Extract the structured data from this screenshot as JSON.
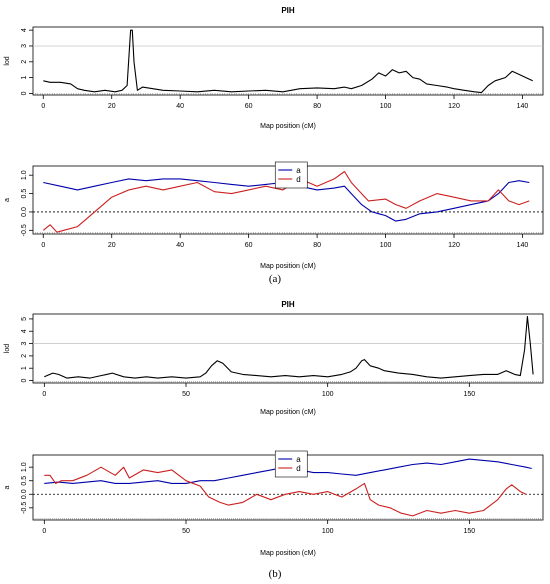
{
  "figure": {
    "captions": [
      "(a)",
      "(b)"
    ]
  },
  "chart_data": [
    {
      "id": "a-lod",
      "type": "line",
      "title": "PIH",
      "xlabel": "Map position (cM)",
      "ylabel": "lod",
      "xlim": [
        -3,
        146
      ],
      "ylim": [
        -0.1,
        4.2
      ],
      "xticks": [
        0,
        20,
        40,
        60,
        80,
        100,
        120,
        140
      ],
      "yticks": [
        0,
        1,
        2,
        3,
        4
      ],
      "threshold": 3,
      "series": [
        {
          "color": "#000000",
          "x": [
            0,
            2,
            5,
            8,
            10,
            12,
            15,
            18,
            21,
            23,
            24.5,
            25.5,
            26,
            26.5,
            27.5,
            29,
            32,
            35,
            40,
            45,
            50,
            55,
            60,
            65,
            70,
            75,
            80,
            85,
            88,
            90,
            93,
            96,
            98,
            100,
            102,
            104,
            106,
            108,
            110,
            112,
            115,
            118,
            120,
            123,
            126,
            128,
            130,
            132,
            135,
            137,
            139,
            141,
            143
          ],
          "y": [
            0.8,
            0.7,
            0.7,
            0.6,
            0.3,
            0.2,
            0.1,
            0.2,
            0.1,
            0.2,
            0.5,
            4.0,
            4.0,
            2.0,
            0.2,
            0.4,
            0.3,
            0.2,
            0.15,
            0.1,
            0.2,
            0.1,
            0.15,
            0.2,
            0.1,
            0.3,
            0.35,
            0.3,
            0.4,
            0.3,
            0.5,
            0.9,
            1.3,
            1.1,
            1.5,
            1.3,
            1.4,
            1.0,
            0.9,
            0.6,
            0.5,
            0.4,
            0.3,
            0.2,
            0.1,
            0.05,
            0.5,
            0.8,
            1.0,
            1.4,
            1.2,
            1.0,
            0.8
          ]
        }
      ]
    },
    {
      "id": "a-eff",
      "type": "line",
      "xlabel": "Map position (cM)",
      "ylabel": "a",
      "xlim": [
        -3,
        146
      ],
      "ylim": [
        -0.6,
        1.25
      ],
      "xticks": [
        0,
        20,
        40,
        60,
        80,
        100,
        120,
        140
      ],
      "yticks": [
        -0.5,
        0.0,
        0.5,
        1.0
      ],
      "ytick_labels": [
        "-0.5",
        "0.0",
        "0.5",
        "1.0"
      ],
      "zero_line": 0,
      "legend_location": "top-center",
      "series": [
        {
          "name": "a",
          "color": "#0000aa",
          "x": [
            0,
            5,
            10,
            15,
            20,
            25,
            30,
            35,
            40,
            45,
            50,
            55,
            60,
            65,
            70,
            75,
            80,
            85,
            88,
            90,
            93,
            96,
            100,
            103,
            106,
            110,
            115,
            120,
            125,
            130,
            133,
            136,
            139,
            142
          ],
          "y": [
            0.8,
            0.7,
            0.6,
            0.7,
            0.8,
            0.9,
            0.85,
            0.9,
            0.9,
            0.85,
            0.8,
            0.75,
            0.7,
            0.75,
            0.8,
            0.7,
            0.6,
            0.65,
            0.7,
            0.5,
            0.2,
            0.0,
            -0.1,
            -0.25,
            -0.2,
            -0.05,
            0.0,
            0.1,
            0.2,
            0.3,
            0.5,
            0.8,
            0.85,
            0.8
          ]
        },
        {
          "name": "d",
          "color": "#cc2020",
          "x": [
            0,
            2,
            4,
            6,
            10,
            15,
            20,
            25,
            30,
            35,
            40,
            45,
            50,
            55,
            60,
            65,
            70,
            75,
            80,
            85,
            88,
            90,
            93,
            95,
            100,
            103,
            106,
            110,
            115,
            120,
            125,
            130,
            133,
            136,
            139,
            142
          ],
          "y": [
            -0.5,
            -0.35,
            -0.55,
            -0.5,
            -0.4,
            0.0,
            0.4,
            0.6,
            0.7,
            0.6,
            0.7,
            0.8,
            0.55,
            0.5,
            0.6,
            0.7,
            0.6,
            0.9,
            0.7,
            0.9,
            1.1,
            0.8,
            0.5,
            0.3,
            0.35,
            0.2,
            0.1,
            0.3,
            0.5,
            0.4,
            0.3,
            0.3,
            0.6,
            0.3,
            0.2,
            0.3
          ]
        }
      ]
    },
    {
      "id": "b-lod",
      "type": "line",
      "title": "PIH",
      "xlabel": "Map position (cM)",
      "ylabel": "lod",
      "xlim": [
        -4,
        176
      ],
      "ylim": [
        -0.2,
        5.4
      ],
      "xticks": [
        0,
        50,
        100,
        150
      ],
      "yticks": [
        0,
        1,
        2,
        3,
        4,
        5
      ],
      "threshold": 3,
      "series": [
        {
          "color": "#000000",
          "x": [
            0,
            3,
            5,
            8,
            12,
            16,
            20,
            22,
            24,
            28,
            32,
            36,
            40,
            45,
            50,
            55,
            57,
            59,
            61,
            63,
            66,
            70,
            75,
            80,
            85,
            90,
            95,
            100,
            105,
            108,
            110,
            112,
            113,
            115,
            118,
            120,
            125,
            130,
            135,
            140,
            145,
            150,
            155,
            160,
            163,
            166,
            168,
            169.5,
            170.5,
            171.5,
            172.5
          ],
          "y": [
            0.3,
            0.6,
            0.5,
            0.2,
            0.3,
            0.2,
            0.4,
            0.5,
            0.6,
            0.3,
            0.2,
            0.3,
            0.2,
            0.3,
            0.2,
            0.3,
            0.6,
            1.2,
            1.6,
            1.4,
            0.7,
            0.5,
            0.4,
            0.3,
            0.4,
            0.3,
            0.4,
            0.3,
            0.5,
            0.7,
            1.0,
            1.6,
            1.7,
            1.2,
            1.0,
            0.8,
            0.6,
            0.5,
            0.3,
            0.2,
            0.3,
            0.4,
            0.5,
            0.5,
            0.8,
            0.5,
            0.4,
            2.5,
            5.2,
            3.0,
            0.5
          ]
        }
      ]
    },
    {
      "id": "b-eff",
      "type": "line",
      "xlabel": "Map position (cM)",
      "ylabel": "a",
      "xlim": [
        -4,
        176
      ],
      "ylim": [
        -0.95,
        1.45
      ],
      "xticks": [
        0,
        50,
        100,
        150
      ],
      "yticks": [
        -0.5,
        0.0,
        0.5,
        1.0
      ],
      "ytick_labels": [
        "-0.5",
        "0.0",
        "0.5",
        "1.0"
      ],
      "zero_line": 0,
      "legend_location": "top-center",
      "series": [
        {
          "name": "a",
          "color": "#0000aa",
          "x": [
            0,
            5,
            10,
            15,
            20,
            25,
            30,
            35,
            40,
            45,
            50,
            55,
            60,
            65,
            70,
            75,
            80,
            85,
            90,
            95,
            100,
            105,
            110,
            115,
            120,
            125,
            130,
            135,
            140,
            145,
            150,
            155,
            160,
            165,
            170,
            172
          ],
          "y": [
            0.4,
            0.45,
            0.4,
            0.45,
            0.5,
            0.4,
            0.4,
            0.45,
            0.5,
            0.4,
            0.4,
            0.5,
            0.5,
            0.6,
            0.7,
            0.8,
            0.9,
            1.0,
            0.9,
            0.8,
            0.8,
            0.75,
            0.7,
            0.8,
            0.9,
            1.0,
            1.1,
            1.15,
            1.1,
            1.2,
            1.3,
            1.25,
            1.2,
            1.1,
            1.0,
            0.95
          ]
        },
        {
          "name": "d",
          "color": "#cc2020",
          "x": [
            0,
            2,
            4,
            6,
            10,
            15,
            20,
            25,
            28,
            30,
            35,
            40,
            45,
            50,
            55,
            58,
            62,
            65,
            70,
            75,
            80,
            85,
            90,
            95,
            100,
            105,
            110,
            113,
            115,
            118,
            122,
            126,
            130,
            135,
            140,
            145,
            150,
            155,
            160,
            163,
            165,
            168,
            170
          ],
          "y": [
            0.7,
            0.7,
            0.4,
            0.5,
            0.5,
            0.7,
            1.0,
            0.7,
            1.0,
            0.6,
            0.9,
            0.8,
            0.9,
            0.5,
            0.3,
            -0.1,
            -0.3,
            -0.4,
            -0.3,
            0.0,
            -0.2,
            0.0,
            0.1,
            0.0,
            0.1,
            -0.1,
            0.2,
            0.4,
            -0.2,
            -0.4,
            -0.5,
            -0.7,
            -0.8,
            -0.6,
            -0.7,
            -0.6,
            -0.7,
            -0.6,
            -0.2,
            0.2,
            0.35,
            0.1,
            0.0
          ]
        }
      ]
    }
  ]
}
